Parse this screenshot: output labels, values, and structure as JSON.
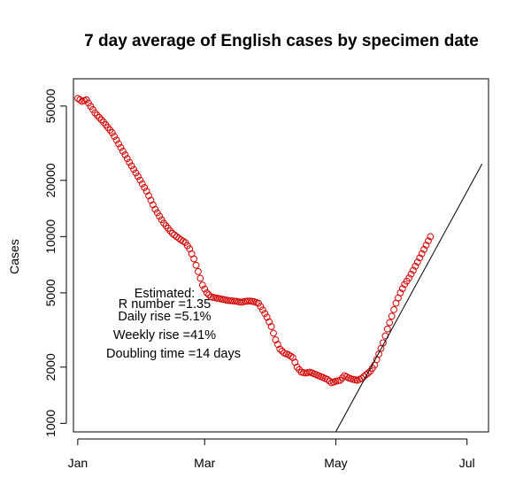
{
  "chart_data": {
    "type": "scatter",
    "title": "7 day average of English cases by specimen date",
    "xlabel": "",
    "ylabel": "Cases",
    "y_scale": "log",
    "xlim": [
      -2,
      191
    ],
    "ylim": [
      900,
      70000
    ],
    "x_ticks": [
      {
        "x": 0,
        "label": "Jan"
      },
      {
        "x": 59,
        "label": "Mar"
      },
      {
        "x": 120,
        "label": "May"
      },
      {
        "x": 181,
        "label": "Jul"
      }
    ],
    "y_ticks": [
      1000,
      2000,
      5000,
      10000,
      20000,
      50000
    ],
    "series_color": "#d40000",
    "key_points": [
      [
        0,
        55000
      ],
      [
        2,
        53000
      ],
      [
        4,
        54000
      ],
      [
        8,
        46000
      ],
      [
        12,
        41000
      ],
      [
        16,
        36000
      ],
      [
        20,
        30000
      ],
      [
        24,
        25000
      ],
      [
        28,
        21000
      ],
      [
        32,
        17500
      ],
      [
        36,
        14000
      ],
      [
        40,
        11800
      ],
      [
        44,
        10400
      ],
      [
        48,
        9600
      ],
      [
        50,
        9300
      ],
      [
        52,
        8600
      ],
      [
        54,
        7600
      ],
      [
        56,
        6500
      ],
      [
        58,
        5500
      ],
      [
        60,
        5000
      ],
      [
        62,
        4750
      ],
      [
        66,
        4650
      ],
      [
        70,
        4550
      ],
      [
        74,
        4500
      ],
      [
        76,
        4450
      ],
      [
        78,
        4500
      ],
      [
        80,
        4520
      ],
      [
        82,
        4480
      ],
      [
        84,
        4400
      ],
      [
        86,
        4050
      ],
      [
        88,
        3700
      ],
      [
        90,
        3300
      ],
      [
        92,
        2800
      ],
      [
        94,
        2500
      ],
      [
        96,
        2380
      ],
      [
        98,
        2330
      ],
      [
        100,
        2250
      ],
      [
        102,
        2000
      ],
      [
        104,
        1880
      ],
      [
        106,
        1860
      ],
      [
        108,
        1880
      ],
      [
        110,
        1840
      ],
      [
        112,
        1800
      ],
      [
        114,
        1760
      ],
      [
        116,
        1720
      ],
      [
        118,
        1650
      ],
      [
        120,
        1680
      ],
      [
        122,
        1700
      ],
      [
        124,
        1800
      ],
      [
        126,
        1750
      ],
      [
        128,
        1720
      ],
      [
        130,
        1700
      ],
      [
        132,
        1740
      ],
      [
        134,
        1820
      ],
      [
        136,
        1900
      ],
      [
        138,
        2050
      ],
      [
        140,
        2350
      ],
      [
        142,
        2700
      ],
      [
        144,
        3200
      ],
      [
        146,
        3750
      ],
      [
        148,
        4400
      ],
      [
        150,
        5000
      ],
      [
        152,
        5550
      ],
      [
        154,
        6000
      ],
      [
        156,
        6600
      ],
      [
        158,
        7300
      ],
      [
        160,
        8100
      ],
      [
        162,
        9000
      ],
      [
        164,
        10000
      ]
    ],
    "trend_line": {
      "from": [
        119,
        860
      ],
      "to": [
        188,
        24500
      ],
      "color": "#000000"
    },
    "annotations": [
      "Estimated:",
      "R number =1.35",
      "Daily rise =5.1%",
      "Weekly rise =41%",
      "Doubling time =14 days"
    ]
  }
}
